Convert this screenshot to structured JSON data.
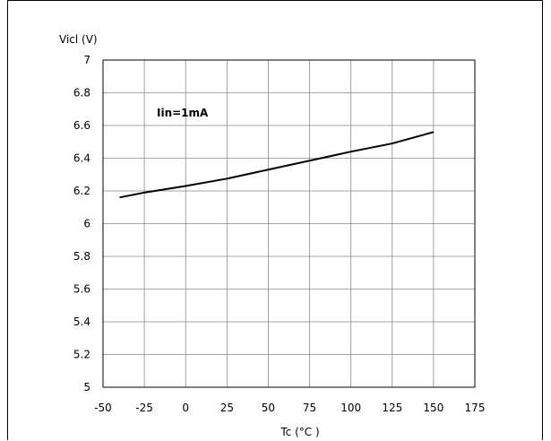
{
  "chart_data": {
    "type": "line",
    "ylabel": "Vicl (V)",
    "xlabel": "Tc (°C )",
    "xlim": [
      -50,
      175
    ],
    "ylim": [
      5,
      7
    ],
    "x_ticks": [
      -50,
      -25,
      0,
      25,
      50,
      75,
      100,
      125,
      150,
      175
    ],
    "y_ticks": [
      5,
      5.2,
      5.4,
      5.6,
      5.8,
      6,
      6.2,
      6.4,
      6.6,
      6.8,
      7
    ],
    "x_tick_labels": [
      "-50",
      "-25",
      "0",
      "25",
      "50",
      "75",
      "100",
      "125",
      "150",
      "175"
    ],
    "y_tick_labels": [
      "5",
      "5.2",
      "5.4",
      "5.6",
      "5.8",
      "6",
      "6.2",
      "6.4",
      "6.6",
      "6.8",
      "7"
    ],
    "grid": true,
    "annotation": "Iin=1mA",
    "series": [
      {
        "x": [
          -40,
          -25,
          0,
          25,
          50,
          75,
          100,
          125,
          150
        ],
        "y": [
          6.16,
          6.19,
          6.23,
          6.275,
          6.33,
          6.385,
          6.44,
          6.49,
          6.56
        ]
      }
    ],
    "colors": {
      "line": "#000000",
      "grid": "#888888"
    }
  }
}
